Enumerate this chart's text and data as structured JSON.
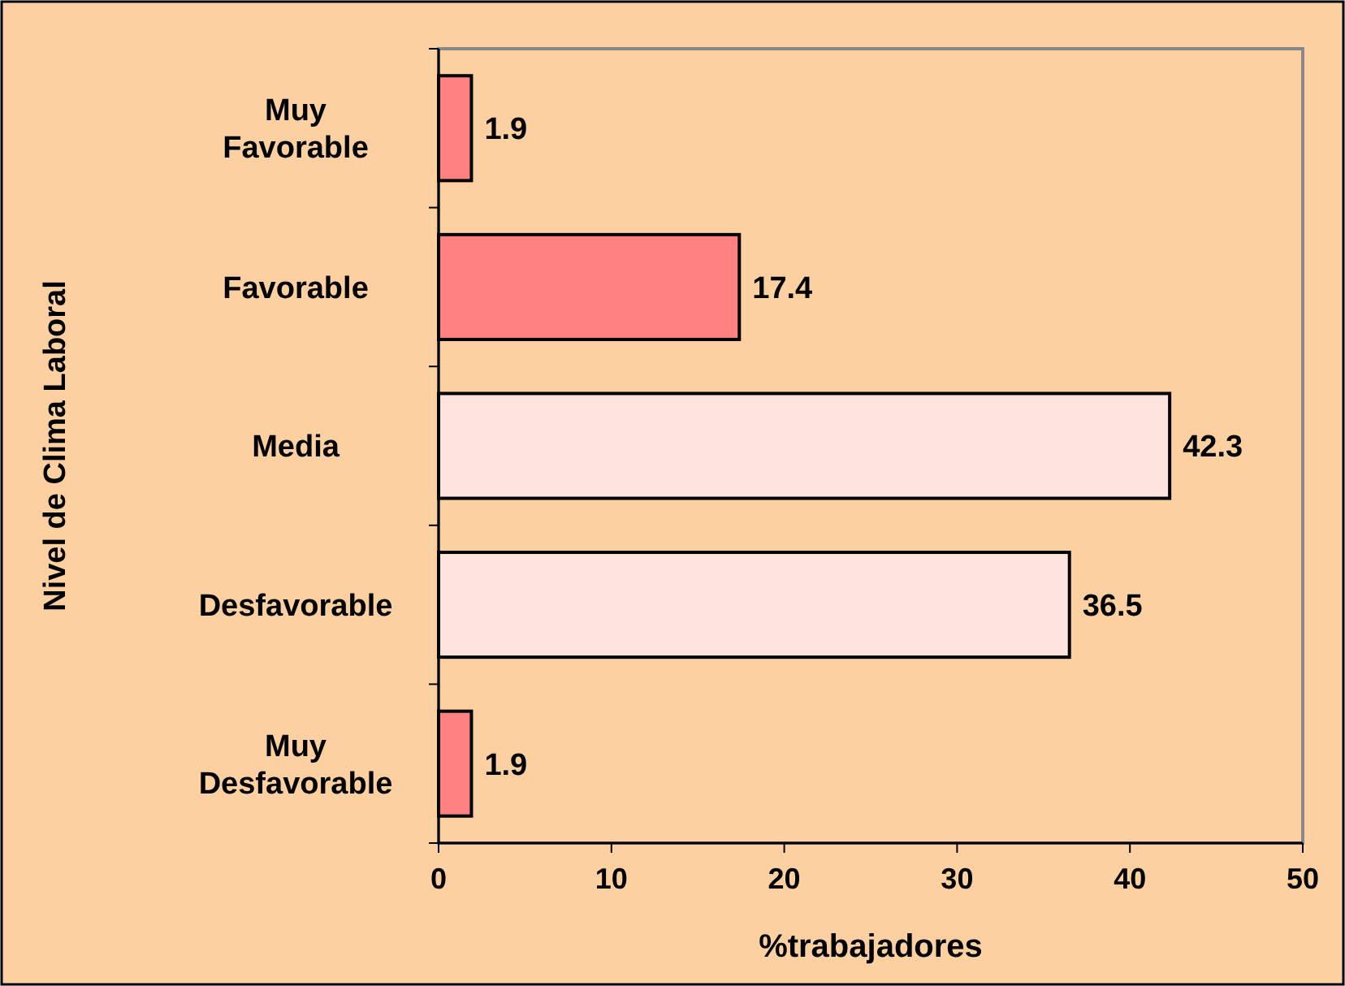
{
  "chart_data": {
    "type": "bar",
    "orientation": "horizontal",
    "categories": [
      "Muy Favorable",
      "Favorable",
      "Media",
      "Desfavorable",
      "Muy Desfavorable"
    ],
    "values": [
      1.9,
      17.4,
      42.3,
      36.5,
      1.9
    ],
    "colors": [
      "#ff8080",
      "#ff8080",
      "#fde4df",
      "#fde4df",
      "#ff8080"
    ],
    "xlabel": "%trabajadores",
    "ylabel": "Nivel de Clima Laboral",
    "xlim": [
      0,
      50
    ],
    "xticks": [
      0,
      10,
      20,
      30,
      40,
      50
    ],
    "data_labels": true,
    "grid": false
  }
}
